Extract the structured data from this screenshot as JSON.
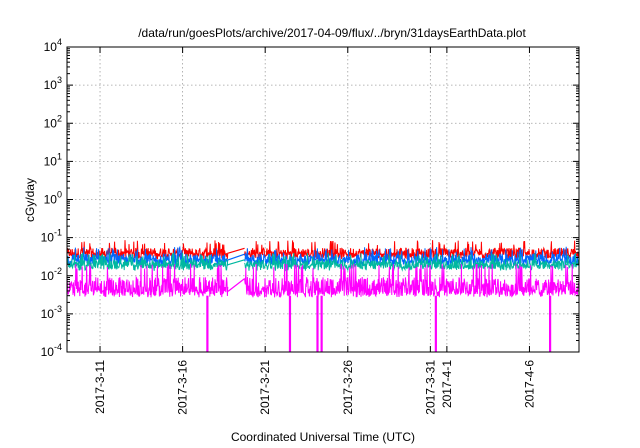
{
  "chart_data": {
    "type": "line",
    "title": "/data/run/goesPlots/archive/2017-04-09/flux/../bryn/31daysEarthData.plot",
    "xlabel": "Coordinated Universal Time (UTC)",
    "ylabel": "cGy/day",
    "y_scale": "log",
    "ylim": [
      0.0001,
      10000
    ],
    "xlim": [
      "2017-03-09",
      "2017-04-09"
    ],
    "grid": true,
    "x_ticks": [
      "2017-3-11",
      "2017-3-16",
      "2017-3-21",
      "2017-3-26",
      "2017-3-31",
      "2017-4-1",
      "2017-4-6"
    ],
    "y_ticks": [
      {
        "base": "10",
        "exp": "-4",
        "value": 0.0001
      },
      {
        "base": "10",
        "exp": "-3",
        "value": 0.001
      },
      {
        "base": "10",
        "exp": "-2",
        "value": 0.01
      },
      {
        "base": "10",
        "exp": "-1",
        "value": 0.1
      },
      {
        "base": "10",
        "exp": "0",
        "value": 1
      },
      {
        "base": "10",
        "exp": "1",
        "value": 10
      },
      {
        "base": "10",
        "exp": "2",
        "value": 100
      },
      {
        "base": "10",
        "exp": "3",
        "value": 1000
      },
      {
        "base": "10",
        "exp": "4",
        "value": 10000
      }
    ],
    "data_gap": {
      "start": "2017-03-18T18:00",
      "end": "2017-03-19T18:00"
    },
    "series": [
      {
        "color": "#ff0000",
        "base": 0.05,
        "peak": 0.075,
        "low": 0.03
      },
      {
        "color": "#0066ff",
        "base": 0.035,
        "peak": 0.05,
        "low": 0.02
      },
      {
        "color": "#00b8a0",
        "base": 0.025,
        "peak": 0.035,
        "low": 0.015
      },
      {
        "color": "#ff00ff",
        "base": 0.008,
        "peak": 0.018,
        "low": 0.003,
        "dropouts": [
          "2017-03-17T12:00",
          "2017-03-22T12:00",
          "2017-03-24T04:00",
          "2017-03-24T10:00",
          "2017-03-31T08:00",
          "2017-04-07T06:00"
        ]
      }
    ]
  }
}
